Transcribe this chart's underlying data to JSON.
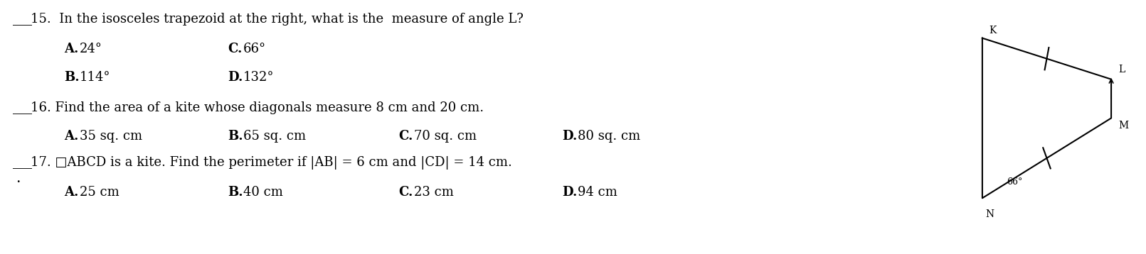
{
  "background_color": "#ffffff",
  "text_color": "#000000",
  "label_fontsize": 13.0,
  "question_fontsize": 13.0,
  "q15_line": "15.  In the isosceles trapezoid at the right, what is the  measure of angle L?",
  "q15_A": "24°",
  "q15_C": "66°",
  "q15_B": "114°",
  "q15_D": "132°",
  "q16_line": "16. Find the area of a kite whose diagonals measure 8 cm and 20 cm.",
  "q16_A": "35 sq. cm",
  "q16_B": "65 sq. cm",
  "q16_C": "70 sq. cm",
  "q16_D": "80 sq. cm",
  "q17_line": "17. □ABCD is a kite. Find the perimeter if |AB| = 6 cm and |CD| = 14 cm.",
  "q17_A": "25 cm",
  "q17_B": "40 cm",
  "q17_C": "23 cm",
  "q17_D": "94 cm"
}
